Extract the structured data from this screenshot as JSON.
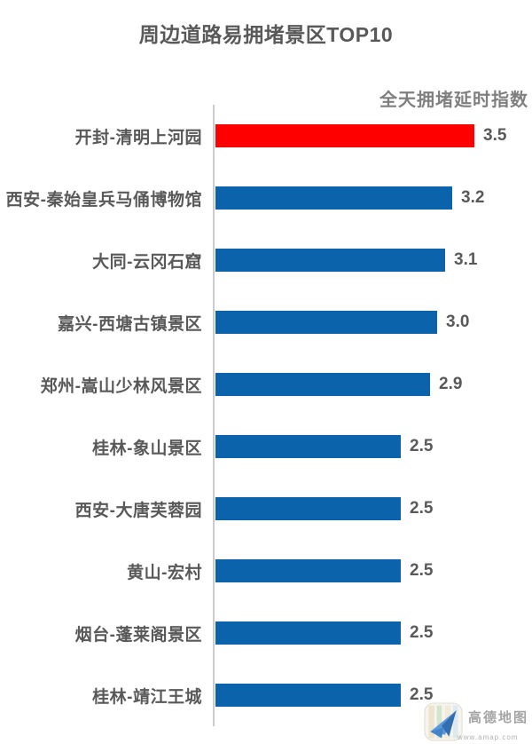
{
  "title": "周边道路易拥堵景区TOP10",
  "chart_data": {
    "type": "bar",
    "orientation": "horizontal",
    "title": "周边道路易拥堵景区TOP10",
    "value_axis_label": "全天拥堵延时指数",
    "categories": [
      "开封-清明上河园",
      "西安-秦始皇兵马俑博物馆",
      "大同-云冈石窟",
      "嘉兴-西塘古镇景区",
      "郑州-嵩山少林风景区",
      "桂林-象山景区",
      "西安-大唐芙蓉园",
      "黄山-宏村",
      "烟台-蓬莱阁景区",
      "桂林-靖江王城"
    ],
    "values": [
      3.5,
      3.2,
      3.1,
      3.0,
      2.9,
      2.5,
      2.5,
      2.5,
      2.5,
      2.5
    ],
    "value_labels": [
      "3.5",
      "3.2",
      "3.1",
      "3.0",
      "2.9",
      "2.5",
      "2.5",
      "2.5",
      "2.5",
      "2.5"
    ],
    "xlim": [
      0,
      3.5
    ],
    "grid": false,
    "legend": "none",
    "highlight_index": 0,
    "colors": {
      "highlight": "#ff0000",
      "default": "#0b63ac"
    }
  },
  "watermark": {
    "brand": "高德地图",
    "url": "www.amap.com"
  }
}
